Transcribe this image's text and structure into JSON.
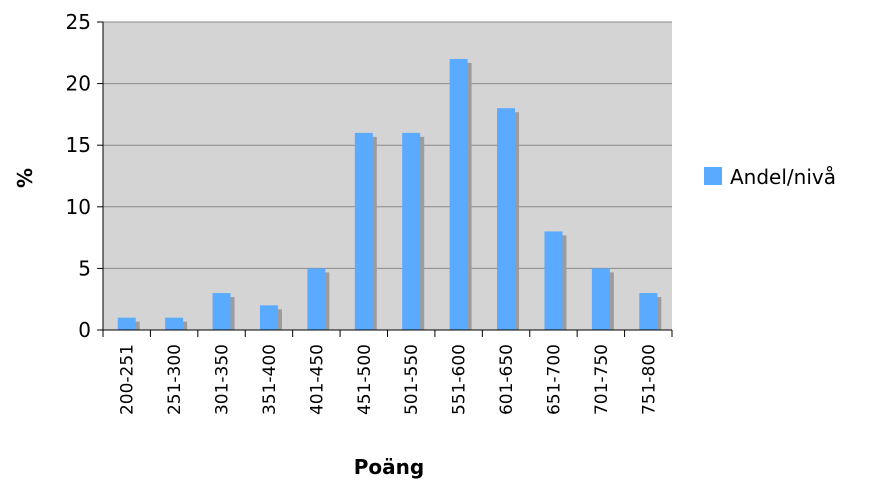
{
  "chart_data": {
    "type": "bar",
    "categories": [
      "200-251",
      "251-300",
      "301-350",
      "351-400",
      "401-450",
      "451-500",
      "501-550",
      "551-600",
      "601-650",
      "651-700",
      "701-750",
      "751-800"
    ],
    "series": [
      {
        "name": "Andel/nivå",
        "values": [
          1,
          1,
          3,
          2,
          5,
          16,
          16,
          22,
          18,
          8,
          5,
          3
        ],
        "color": "#5aaaff"
      }
    ],
    "xlabel": "Poäng",
    "ylabel": "%",
    "ylim": [
      0,
      25
    ],
    "yticks": [
      0,
      5,
      10,
      15,
      20,
      25
    ],
    "grid": true,
    "legend": "right",
    "plot_background": "#d4d4d4"
  }
}
